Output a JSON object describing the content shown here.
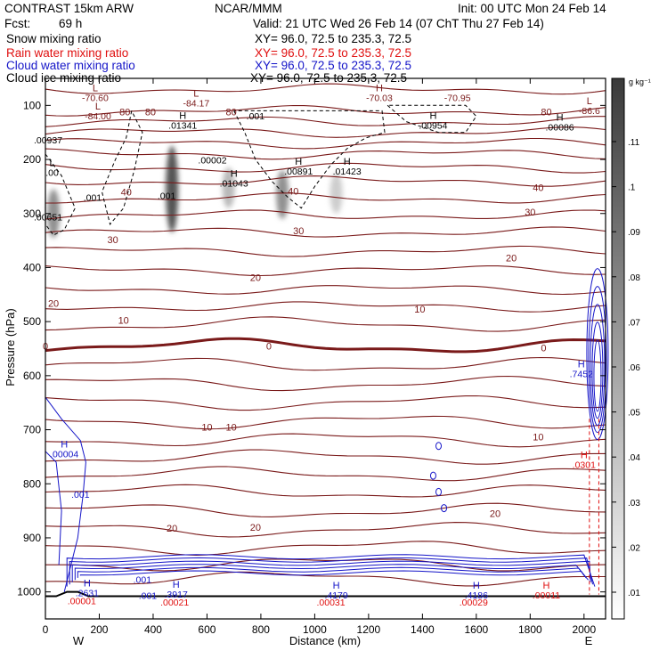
{
  "header": {
    "model": "CONTRAST 15km ARW",
    "center": "NCAR/MMM",
    "init": "Init: 00 UTC Mon 24 Feb 14",
    "fcst_label": "Fcst:",
    "fcst_value": "69 h",
    "valid": "Valid: 21 UTC Wed 26 Feb 14 (07 ChT Thu 27 Feb 14)"
  },
  "fields": [
    {
      "name": "Snow mixing ratio",
      "xy": "XY=  96.0, 72.5 to 235.3, 72.5",
      "color": "#000000"
    },
    {
      "name": "Rain water mixing ratio",
      "xy": "XY=  96.0, 72.5 to 235.3, 72.5",
      "color": "#e01010"
    },
    {
      "name": "Cloud water mixing ratio",
      "xy": "XY=  96.0, 72.5 to 235.3, 72.5",
      "color": "#1515c8"
    },
    {
      "name": "Cloud ice mixing ratio",
      "xy": "XY=  96.0, 72.5 to 235.3, 72.5",
      "color": "#000000"
    }
  ],
  "colors": {
    "temperature": "#7a1a1a",
    "cloud_water": "#1515c8",
    "rain_water": "#e01010",
    "snow_ice": "#000000"
  },
  "chart_data": {
    "type": "contour",
    "xlabel": "Distance (km)",
    "ylabel": "Pressure (hPa)",
    "xlim": [
      0,
      2080
    ],
    "ylim": [
      1050,
      50
    ],
    "x_ticks": [
      0,
      200,
      400,
      600,
      800,
      1000,
      1200,
      1400,
      1600,
      1800,
      2000
    ],
    "y_ticks": [
      100,
      200,
      300,
      400,
      500,
      600,
      700,
      800,
      900,
      1000
    ],
    "end_labels": {
      "left": "W",
      "right": "E"
    },
    "colorbar": {
      "unit": "g kg⁻¹",
      "ticks": [
        ".01",
        ".02",
        ".03",
        ".04",
        ".05",
        ".06",
        ".07",
        ".08",
        ".09",
        ".1",
        ".11"
      ]
    },
    "temperature_labels": [
      {
        "x": 0,
        "p": 545,
        "text": "0"
      },
      {
        "x": 830,
        "p": 545,
        "text": "0"
      },
      {
        "x": 1850,
        "p": 548,
        "text": "0"
      },
      {
        "x": 290,
        "p": 497,
        "text": "10"
      },
      {
        "x": 1390,
        "p": 477,
        "text": "10"
      },
      {
        "x": 30,
        "p": 466,
        "text": "20"
      },
      {
        "x": 780,
        "p": 418,
        "text": "20"
      },
      {
        "x": 1730,
        "p": 382,
        "text": "20"
      },
      {
        "x": 250,
        "p": 348,
        "text": "30"
      },
      {
        "x": 940,
        "p": 332,
        "text": "30"
      },
      {
        "x": 1800,
        "p": 297,
        "text": "30"
      },
      {
        "x": 300,
        "p": 260,
        "text": "40"
      },
      {
        "x": 920,
        "p": 258,
        "text": "40"
      },
      {
        "x": 1830,
        "p": 252,
        "text": "40"
      },
      {
        "x": 295,
        "p": 112,
        "text": "80"
      },
      {
        "x": 390,
        "p": 112,
        "text": "80"
      },
      {
        "x": 690,
        "p": 112,
        "text": "80"
      },
      {
        "x": 1860,
        "p": 112,
        "text": "80"
      },
      {
        "x": 600,
        "p": 695,
        "text": "10"
      },
      {
        "x": 690,
        "p": 695,
        "text": "10"
      },
      {
        "x": 1830,
        "p": 713,
        "text": "10"
      },
      {
        "x": 470,
        "p": 882,
        "text": "20"
      },
      {
        "x": 780,
        "p": 880,
        "text": "20"
      },
      {
        "x": 1670,
        "p": 855,
        "text": "20"
      }
    ],
    "extrema": [
      {
        "x": 185,
        "p": 74,
        "mark": "L",
        "value": "-70.60",
        "color": "#7a1a1a"
      },
      {
        "x": 1240,
        "p": 74,
        "mark": "H",
        "value": "-70.03",
        "color": "#7a1a1a"
      },
      {
        "x": 1530,
        "p": 74,
        "mark": "",
        "value": "-70.95",
        "color": "#7a1a1a"
      },
      {
        "x": 560,
        "p": 84,
        "mark": "L",
        "value": "-84.17",
        "color": "#7a1a1a"
      },
      {
        "x": 195,
        "p": 108,
        "mark": "L",
        "value": "-84.00",
        "color": "#7a1a1a"
      },
      {
        "x": 2020,
        "p": 98,
        "mark": "L",
        "value": "-86.6",
        "color": "#7a1a1a"
      },
      {
        "x": 510,
        "p": 125,
        "mark": "H",
        "value": ".01341",
        "color": "#000000"
      },
      {
        "x": 1440,
        "p": 125,
        "mark": "H",
        "value": ".00954",
        "color": "#000000"
      },
      {
        "x": 1910,
        "p": 128,
        "mark": "H",
        "value": ".00086",
        "color": "#000000"
      },
      {
        "x": 10,
        "p": 152,
        "mark": "",
        "value": ".00937",
        "color": "#000000"
      },
      {
        "x": 620,
        "p": 189,
        "mark": "",
        "value": ".00002",
        "color": "#000000"
      },
      {
        "x": 940,
        "p": 210,
        "mark": "H",
        "value": ".00891",
        "color": "#000000"
      },
      {
        "x": 1120,
        "p": 210,
        "mark": "H",
        "value": ".01423",
        "color": "#000000"
      },
      {
        "x": 700,
        "p": 232,
        "mark": "H",
        "value": ".01043",
        "color": "#000000"
      },
      {
        "x": 25,
        "p": 212,
        "mark": "L",
        "value": ".00",
        "color": "#000000"
      },
      {
        "x": 175,
        "p": 258,
        "mark": "",
        "value": ".001",
        "color": "#000000"
      },
      {
        "x": 450,
        "p": 255,
        "mark": "",
        "value": ".001",
        "color": "#000000"
      },
      {
        "x": 10,
        "p": 295,
        "mark": "",
        "value": ".00651",
        "color": "#000000"
      },
      {
        "x": 70,
        "p": 733,
        "mark": "H",
        "value": ".00004",
        "color": "#1515c8"
      },
      {
        "x": 130,
        "p": 808,
        "mark": "",
        "value": ".001",
        "color": "#1515c8"
      },
      {
        "x": 1990,
        "p": 585,
        "mark": "H",
        "value": ".7452",
        "color": "#1515c8"
      },
      {
        "x": 2000,
        "p": 753,
        "mark": "H",
        "value": ".0301",
        "color": "#e01010"
      },
      {
        "x": 155,
        "p": 990,
        "mark": "H",
        "value": ".2631",
        "color": "#1515c8"
      },
      {
        "x": 485,
        "p": 992,
        "mark": "H",
        "value": ".3917",
        "color": "#1515c8"
      },
      {
        "x": 1080,
        "p": 994,
        "mark": "H",
        "value": ".4179",
        "color": "#1515c8"
      },
      {
        "x": 1600,
        "p": 994,
        "mark": "H",
        "value": ".4186",
        "color": "#1515c8"
      },
      {
        "x": 1860,
        "p": 994,
        "mark": "H",
        "value": ".00011",
        "color": "#e01010"
      },
      {
        "x": 135,
        "p": 1005,
        "mark": "",
        "value": ".00001",
        "color": "#e01010"
      },
      {
        "x": 480,
        "p": 1007,
        "mark": "",
        "value": ".00021",
        "color": "#e01010"
      },
      {
        "x": 1060,
        "p": 1007,
        "mark": "",
        "value": ".00031",
        "color": "#e01010"
      },
      {
        "x": 1590,
        "p": 1007,
        "mark": "",
        "value": ".00029",
        "color": "#e01010"
      },
      {
        "x": 360,
        "p": 965,
        "mark": "",
        "value": ".001",
        "color": "#1515c8"
      },
      {
        "x": 380,
        "p": 995,
        "mark": "",
        "value": ".001",
        "color": "#1515c8"
      },
      {
        "x": 780,
        "p": 108,
        "mark": "",
        "value": ".001",
        "color": "#000000"
      }
    ],
    "snow_columns": [
      {
        "x": 470,
        "p_top": 175,
        "p_bot": 335,
        "intensity": 0.85
      },
      {
        "x": 680,
        "p_top": 215,
        "p_bot": 290,
        "intensity": 0.35
      },
      {
        "x": 880,
        "p_top": 220,
        "p_bot": 310,
        "intensity": 0.55
      },
      {
        "x": 1080,
        "p_top": 225,
        "p_bot": 300,
        "intensity": 0.25
      },
      {
        "x": 30,
        "p_top": 255,
        "p_bot": 345,
        "intensity": 0.55
      }
    ]
  }
}
